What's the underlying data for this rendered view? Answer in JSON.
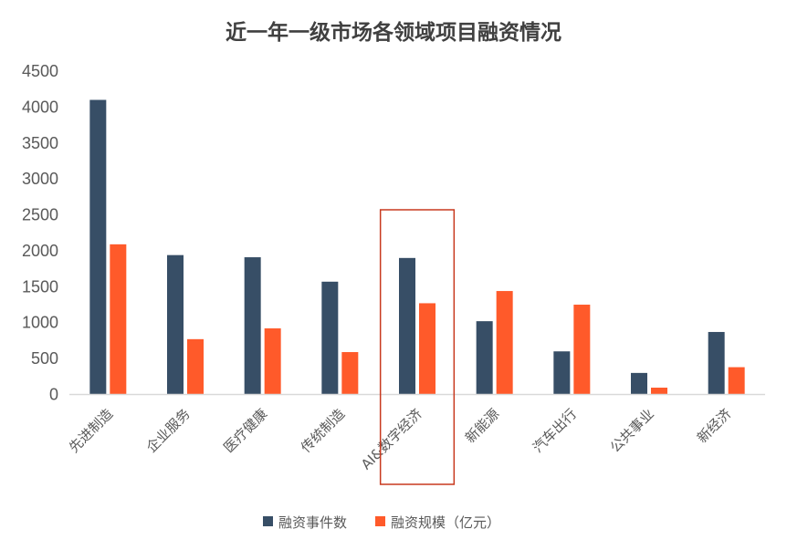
{
  "colors": {
    "series_events": "#374e66",
    "series_amount": "#ff5a2a",
    "highlight_box": "#c8391e",
    "axis": "#d9d9d9",
    "text": "#595959",
    "title": "#404040"
  },
  "chart_data": {
    "type": "bar",
    "title": "近一年一级市场各领域项目融资情况",
    "xlabel": "",
    "ylabel": "",
    "ylim": [
      0,
      4500
    ],
    "yticks": [
      "0",
      "500",
      "1000",
      "1500",
      "2000",
      "2500",
      "3000",
      "3500",
      "4000",
      "4500"
    ],
    "grid": false,
    "legend_position": "bottom",
    "categories": [
      "先进制造",
      "企业服务",
      "医疗健康",
      "传统制造",
      "AI&数字经济",
      "新能源",
      "汽车出行",
      "公共事业",
      "新经济"
    ],
    "series": [
      {
        "name": "融资事件数",
        "values": [
          4100,
          1940,
          1910,
          1570,
          1900,
          1020,
          600,
          300,
          870
        ]
      },
      {
        "name": "融资规模（亿元）",
        "values": [
          2090,
          770,
          920,
          590,
          1270,
          1440,
          1250,
          95,
          380
        ]
      }
    ],
    "highlighted_category": "AI&数字经济"
  }
}
